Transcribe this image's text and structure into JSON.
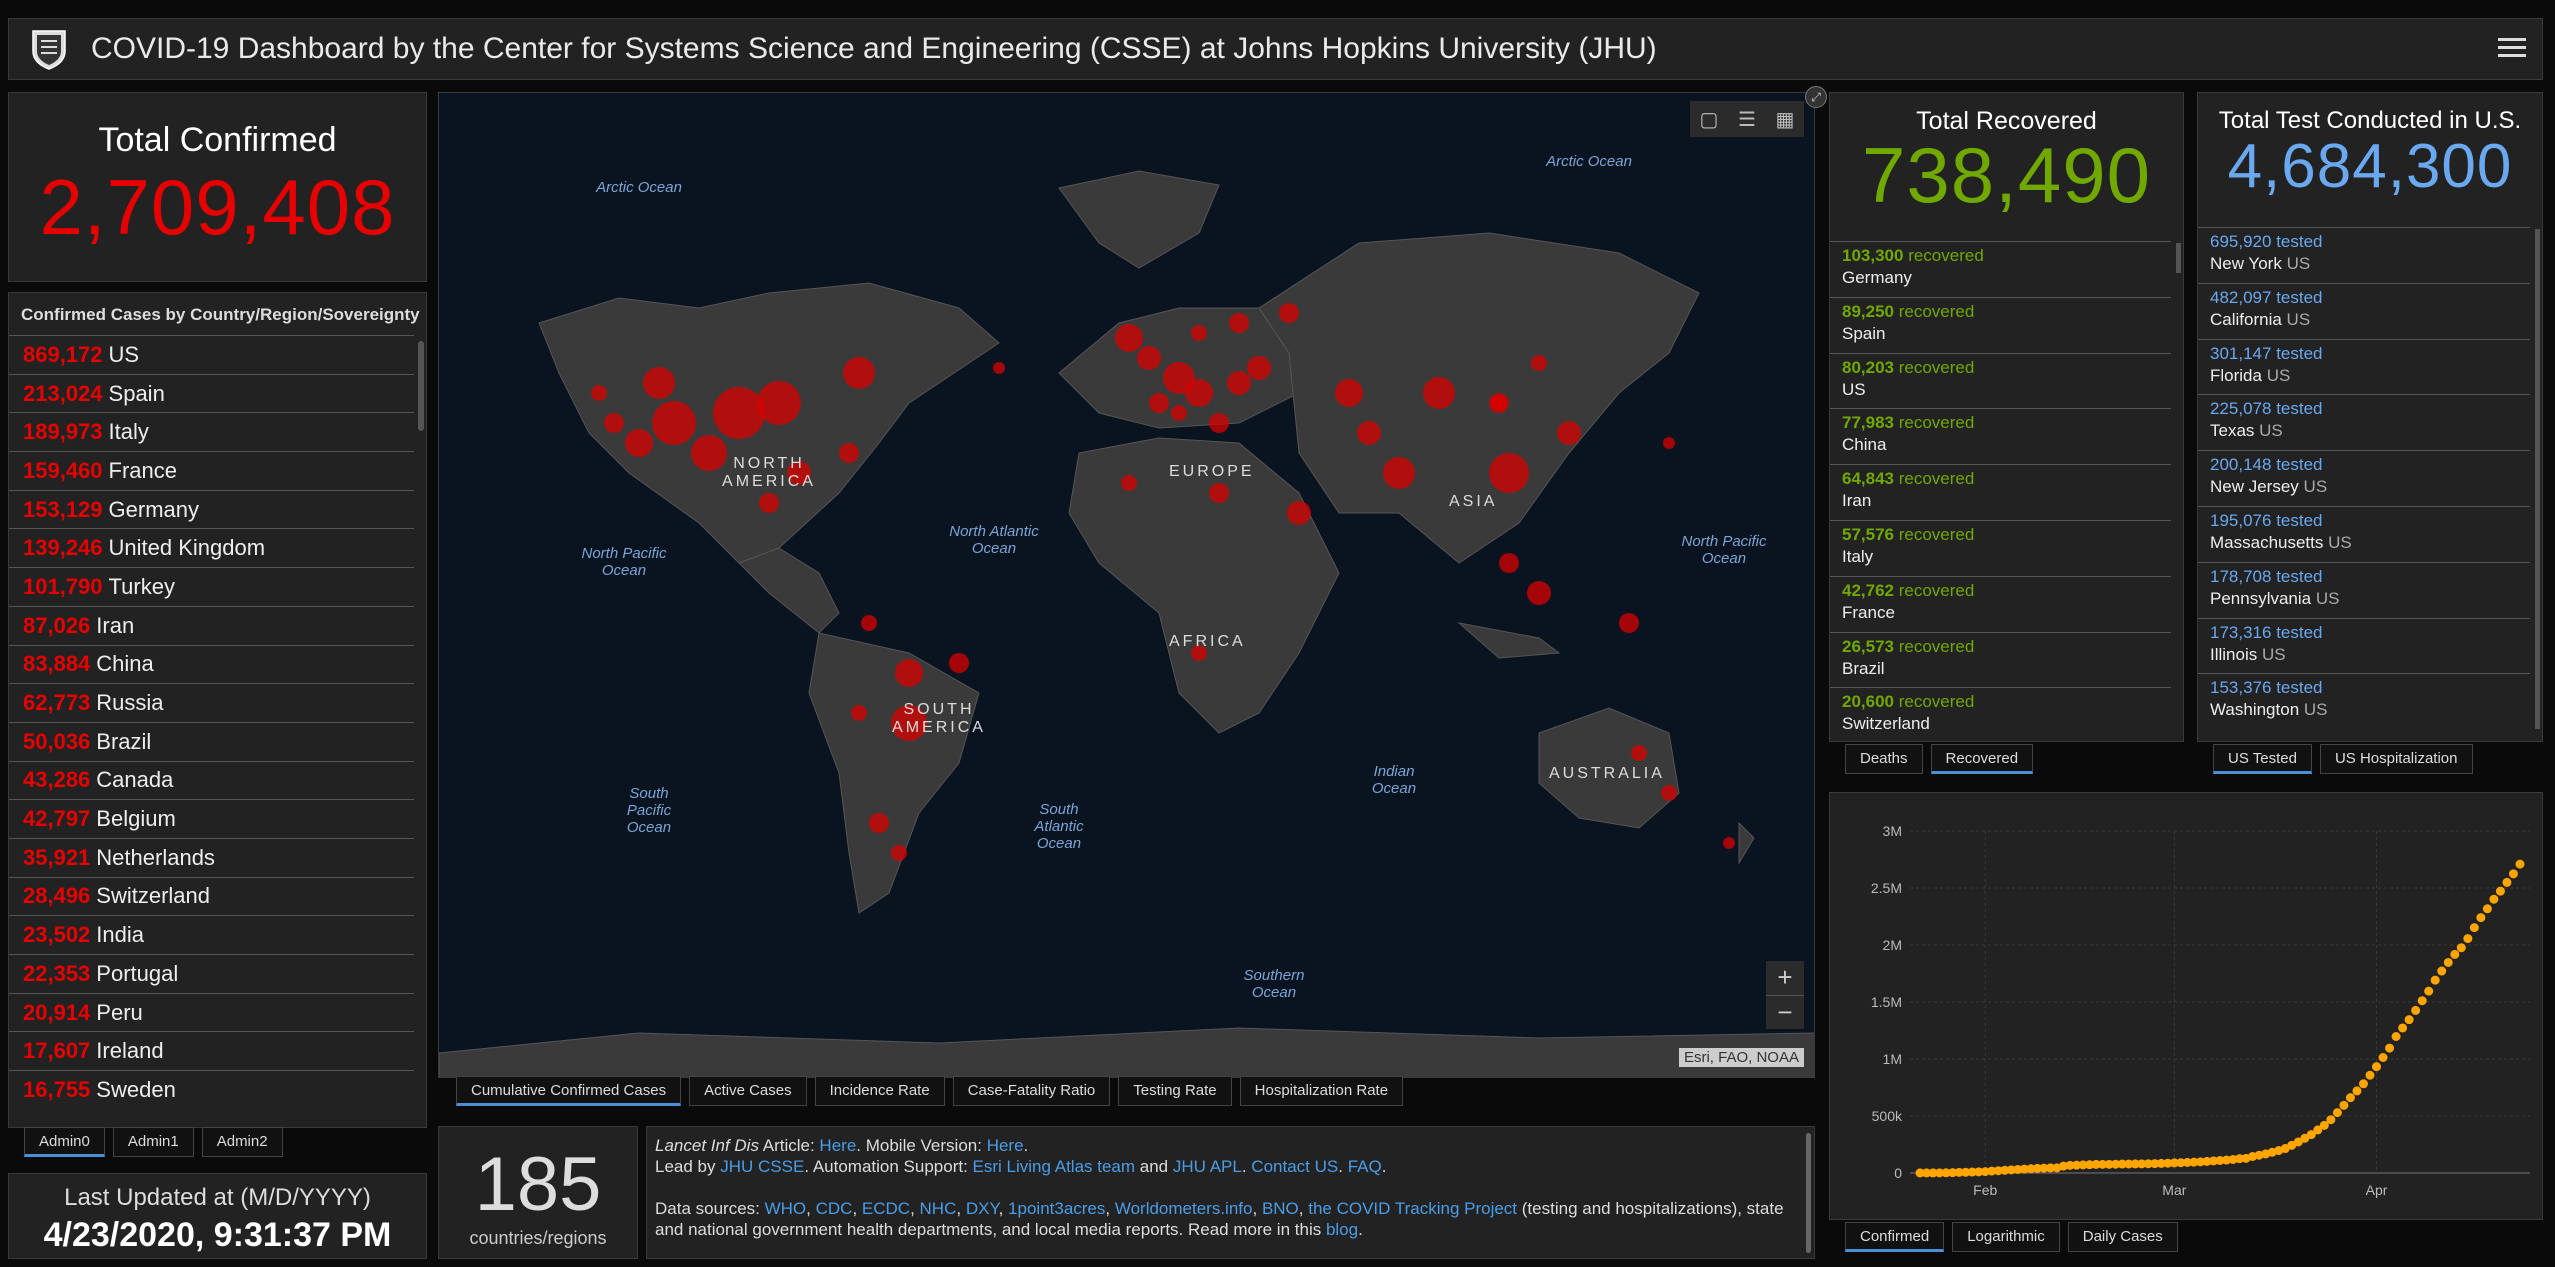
{
  "header": {
    "title": "COVID-19 Dashboard by the Center for Systems Science and Engineering (CSSE) at Johns Hopkins University (JHU)"
  },
  "total_confirmed": {
    "label": "Total Confirmed",
    "value": "2,709,408"
  },
  "country_list": {
    "header": "Confirmed Cases by Country/Region/Sovereignty",
    "rows": [
      {
        "num": "869,172",
        "name": "US"
      },
      {
        "num": "213,024",
        "name": "Spain"
      },
      {
        "num": "189,973",
        "name": "Italy"
      },
      {
        "num": "159,460",
        "name": "France"
      },
      {
        "num": "153,129",
        "name": "Germany"
      },
      {
        "num": "139,246",
        "name": "United Kingdom"
      },
      {
        "num": "101,790",
        "name": "Turkey"
      },
      {
        "num": "87,026",
        "name": "Iran"
      },
      {
        "num": "83,884",
        "name": "China"
      },
      {
        "num": "62,773",
        "name": "Russia"
      },
      {
        "num": "50,036",
        "name": "Brazil"
      },
      {
        "num": "43,286",
        "name": "Canada"
      },
      {
        "num": "42,797",
        "name": "Belgium"
      },
      {
        "num": "35,921",
        "name": "Netherlands"
      },
      {
        "num": "28,496",
        "name": "Switzerland"
      },
      {
        "num": "23,502",
        "name": "India"
      },
      {
        "num": "22,353",
        "name": "Portugal"
      },
      {
        "num": "20,914",
        "name": "Peru"
      },
      {
        "num": "17,607",
        "name": "Ireland"
      },
      {
        "num": "16,755",
        "name": "Sweden"
      }
    ]
  },
  "admin_tabs": [
    "Admin0",
    "Admin1",
    "Admin2"
  ],
  "last_updated": {
    "label": "Last Updated at (M/D/YYYY)",
    "value": "4/23/2020, 9:31:37 PM"
  },
  "map": {
    "attribution": "Esri, FAO, NOAA",
    "labels": {
      "arctic_w": "Arctic Ocean",
      "arctic_e": "Arctic Ocean",
      "north_america": "NORTH AMERICA",
      "europe": "EUROPE",
      "asia": "ASIA",
      "africa": "AFRICA",
      "south_america": "SOUTH AMERICA",
      "australia": "AUSTRALIA",
      "np_ocean": "North Pacific Ocean",
      "na_ocean": "North Atlantic Ocean",
      "np_ocean_e": "North Pacific Ocean",
      "sp_ocean": "South Pacific Ocean",
      "sa_ocean": "South Atlantic Ocean",
      "indian_ocean": "Indian Ocean",
      "southern_ocean": "Southern Ocean"
    },
    "tabs": [
      "Cumulative Confirmed Cases",
      "Active Cases",
      "Incidence Rate",
      "Case-Fatality Ratio",
      "Testing Rate",
      "Hospitalization Rate"
    ],
    "icons": [
      "bookmark-icon",
      "list-icon",
      "qr-icon"
    ]
  },
  "countries_count": {
    "value": "185",
    "label": "countries/regions"
  },
  "sources": {
    "l1a": "Lancet Inf Dis",
    "l1b": " Article: ",
    "l1c": "Here",
    "l1d": ". Mobile Version: ",
    "l1e": "Here",
    "l1f": ".",
    "l2a": "Lead by ",
    "l2b": "JHU CSSE",
    "l2c": ". Automation Support: ",
    "l2d": "Esri Living Atlas team",
    "l2e": " and ",
    "l2f": "JHU APL",
    "l2g": ". ",
    "l2h": "Contact US",
    "l2i": ". ",
    "l2j": "FAQ",
    "l2k": ".",
    "l3a": "Data sources: ",
    "links": [
      "WHO",
      "CDC",
      "ECDC",
      "NHC",
      "DXY",
      "1point3acres",
      "Worldometers.info",
      "BNO",
      "the COVID Tracking Project"
    ],
    "l3b": " (testing and hospitalizations), state and national government health departments, and local media reports.  Read more in this ",
    "l3c": "blog",
    "l3d": "."
  },
  "recovered": {
    "label": "Total Recovered",
    "value": "738,490",
    "word": "recovered",
    "items": [
      {
        "num": "103,300",
        "country": "Germany"
      },
      {
        "num": "89,250",
        "country": "Spain"
      },
      {
        "num": "80,203",
        "country": "US"
      },
      {
        "num": "77,983",
        "country": "China"
      },
      {
        "num": "64,843",
        "country": "Iran"
      },
      {
        "num": "57,576",
        "country": "Italy"
      },
      {
        "num": "42,762",
        "country": "France"
      },
      {
        "num": "26,573",
        "country": "Brazil"
      },
      {
        "num": "20,600",
        "country": "Switzerland"
      }
    ],
    "tabs": [
      "Deaths",
      "Recovered"
    ]
  },
  "tested": {
    "label": "Total Test Conducted in U.S.",
    "value": "4,684,300",
    "word": "tested",
    "us": "US",
    "items": [
      {
        "num": "695,920",
        "state": "New York"
      },
      {
        "num": "482,097",
        "state": "California"
      },
      {
        "num": "301,147",
        "state": "Florida"
      },
      {
        "num": "225,078",
        "state": "Texas"
      },
      {
        "num": "200,148",
        "state": "New Jersey"
      },
      {
        "num": "195,076",
        "state": "Massachusetts"
      },
      {
        "num": "178,708",
        "state": "Pennsylvania"
      },
      {
        "num": "173,316",
        "state": "Illinois"
      },
      {
        "num": "153,376",
        "state": "Washington"
      }
    ],
    "tabs": [
      "US Tested",
      "US Hospitalization"
    ]
  },
  "chart_tabs": [
    "Confirmed",
    "Logarithmic",
    "Daily Cases"
  ],
  "colors": {
    "confirmed": "#e60000",
    "recovered": "#70a800",
    "tested": "#6aa8f0",
    "chart_points": "#ffa500",
    "active_tab": "#4a90d9"
  },
  "chart_data": {
    "type": "scatter",
    "title": "",
    "xlabel": "",
    "ylabel": "",
    "x_ticks": [
      "Feb",
      "Mar",
      "Apr"
    ],
    "y_ticks": [
      "0",
      "500k",
      "1M",
      "1.5M",
      "2M",
      "2.5M",
      "3M"
    ],
    "ylim": [
      0,
      3000000
    ],
    "start": "2020-01-22",
    "end": "2020-04-23",
    "values": [
      555,
      654,
      941,
      1434,
      2118,
      2927,
      5578,
      6166,
      8234,
      9927,
      12038,
      16787,
      19881,
      23892,
      27635,
      30794,
      34391,
      37120,
      40150,
      42762,
      44802,
      45221,
      60368,
      66885,
      69030,
      71224,
      73258,
      75136,
      75639,
      76197,
      76819,
      78572,
      78958,
      79561,
      80406,
      81388,
      82746,
      84112,
      86011,
      88369,
      90306,
      92840,
      95120,
      97886,
      101800,
      105847,
      109821,
      113590,
      118620,
      125875,
      128352,
      145205,
      156101,
      167454,
      181574,
      197102,
      214821,
      242570,
      272208,
      304507,
      336953,
      378235,
      418045,
      467653,
      529591,
      593291,
      660706,
      720117,
      782365,
      857487,
      932605,
      1013157,
      1095917,
      1197405,
      1272115,
      1345048,
      1426096,
      1511104,
      1595350,
      1691719,
      1771514,
      1846680,
      1917320,
      1976191,
      2056054,
      2152437,
      2240190,
      2317759,
      2401379,
      2472259,
      2549123,
      2624370,
      2709408
    ]
  }
}
